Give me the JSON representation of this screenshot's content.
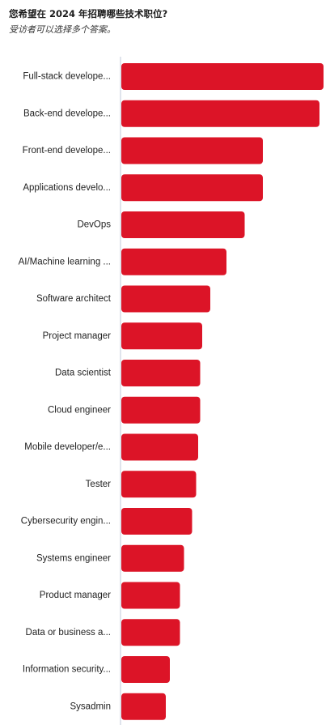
{
  "header": {
    "title": "您希望在 2024 年招聘哪些技术职位?",
    "subtitle": "受访者可以选择多个答案。"
  },
  "colors": {
    "bar": "#DC1427",
    "axis": "#D5DCE6"
  },
  "chart_data": {
    "type": "bar",
    "orientation": "horizontal",
    "title": "您希望在 2024 年招聘哪些技术职位?",
    "subtitle": "受访者可以选择多个答案。",
    "categories": [
      "Full-stack develope...",
      "Back-end develope...",
      "Front-end develope...",
      "Applications develo...",
      "DevOps",
      "AI/Machine learning ...",
      "Software architect",
      "Project manager",
      "Data scientist",
      "Cloud engineer",
      "Mobile developer/e...",
      "Tester",
      "Cybersecurity engin...",
      "Systems engineer",
      "Product manager",
      "Data or business a...",
      "Information security...",
      "Sysadmin"
    ],
    "values": [
      100,
      98,
      70,
      70,
      61,
      52,
      44,
      40,
      39,
      39,
      38,
      37,
      35,
      31,
      29,
      29,
      24,
      22
    ],
    "xlim": [
      0,
      100
    ],
    "grid": false,
    "legend": "none"
  }
}
